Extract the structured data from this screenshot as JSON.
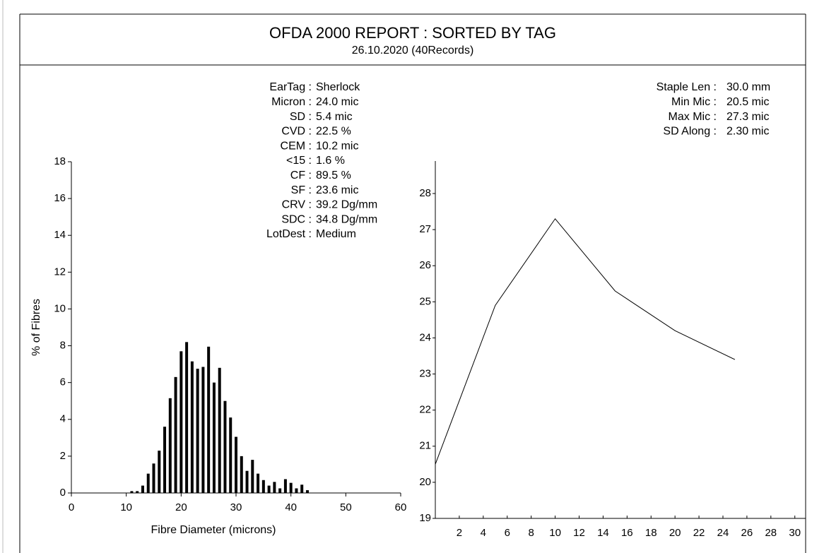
{
  "header": {
    "title": "OFDA 2000 REPORT : SORTED BY TAG",
    "subtitle": "26.10.2020 (40Records)"
  },
  "stats_left": [
    {
      "label": "EarTag :",
      "value": "Sherlock"
    },
    {
      "label": "Micron :",
      "value": "24.0 mic"
    },
    {
      "label": "SD :",
      "value": "5.4 mic"
    },
    {
      "label": "CVD :",
      "value": "22.5 %"
    },
    {
      "label": "CEM :",
      "value": "10.2 mic"
    },
    {
      "label": "<15 :",
      "value": "1.6 %"
    },
    {
      "label": "CF :",
      "value": "89.5 %"
    },
    {
      "label": "SF :",
      "value": "23.6 mic"
    },
    {
      "label": "CRV :",
      "value": "39.2 Dg/mm"
    },
    {
      "label": "SDC :",
      "value": "34.8 Dg/mm"
    },
    {
      "label": "LotDest :",
      "value": "Medium"
    }
  ],
  "stats_right": [
    {
      "label": "Staple Len :",
      "value": "30.0 mm"
    },
    {
      "label": "Min Mic :",
      "value": "20.5 mic"
    },
    {
      "label": "Max Mic :",
      "value": "27.3 mic"
    },
    {
      "label": "SD Along :",
      "value": "2.30 mic"
    }
  ],
  "chart_data": [
    {
      "type": "bar",
      "x_label": "Fibre Diameter (microns)",
      "y_label": "% of Fibres",
      "color": "#000000",
      "x": [
        11,
        12,
        13,
        14,
        15,
        16,
        17,
        18,
        19,
        20,
        21,
        22,
        23,
        24,
        25,
        26,
        27,
        28,
        29,
        30,
        31,
        32,
        33,
        34,
        35,
        36,
        37,
        38,
        39,
        40,
        41,
        42,
        43
      ],
      "values": [
        0.1,
        0.1,
        0.4,
        1.05,
        1.6,
        2.3,
        3.6,
        5.15,
        6.3,
        7.7,
        8.2,
        7.15,
        6.75,
        6.85,
        7.95,
        6.0,
        6.8,
        5.0,
        4.1,
        3.05,
        2.0,
        1.2,
        1.8,
        1.05,
        0.7,
        0.4,
        0.6,
        0.25,
        0.75,
        0.55,
        0.25,
        0.45,
        0.15
      ],
      "xlim": [
        0,
        60
      ],
      "xticks": [
        0,
        10,
        20,
        30,
        40,
        50,
        60
      ],
      "ylim": [
        0,
        18
      ],
      "yticks": [
        0,
        2,
        4,
        6,
        8,
        10,
        12,
        14,
        16,
        18
      ]
    },
    {
      "type": "line",
      "color": "#000000",
      "x": [
        0,
        5,
        10,
        15,
        20,
        25
      ],
      "values": [
        20.5,
        24.9,
        27.3,
        25.3,
        24.2,
        23.4
      ],
      "xlim": [
        0,
        30.9
      ],
      "xticks": [
        2,
        4,
        6,
        8,
        10,
        12,
        14,
        16,
        18,
        20,
        22,
        24,
        26,
        28,
        30
      ],
      "ylim": [
        19,
        28.9
      ],
      "yticks": [
        19,
        20,
        21,
        22,
        23,
        24,
        25,
        26,
        27,
        28
      ]
    }
  ]
}
